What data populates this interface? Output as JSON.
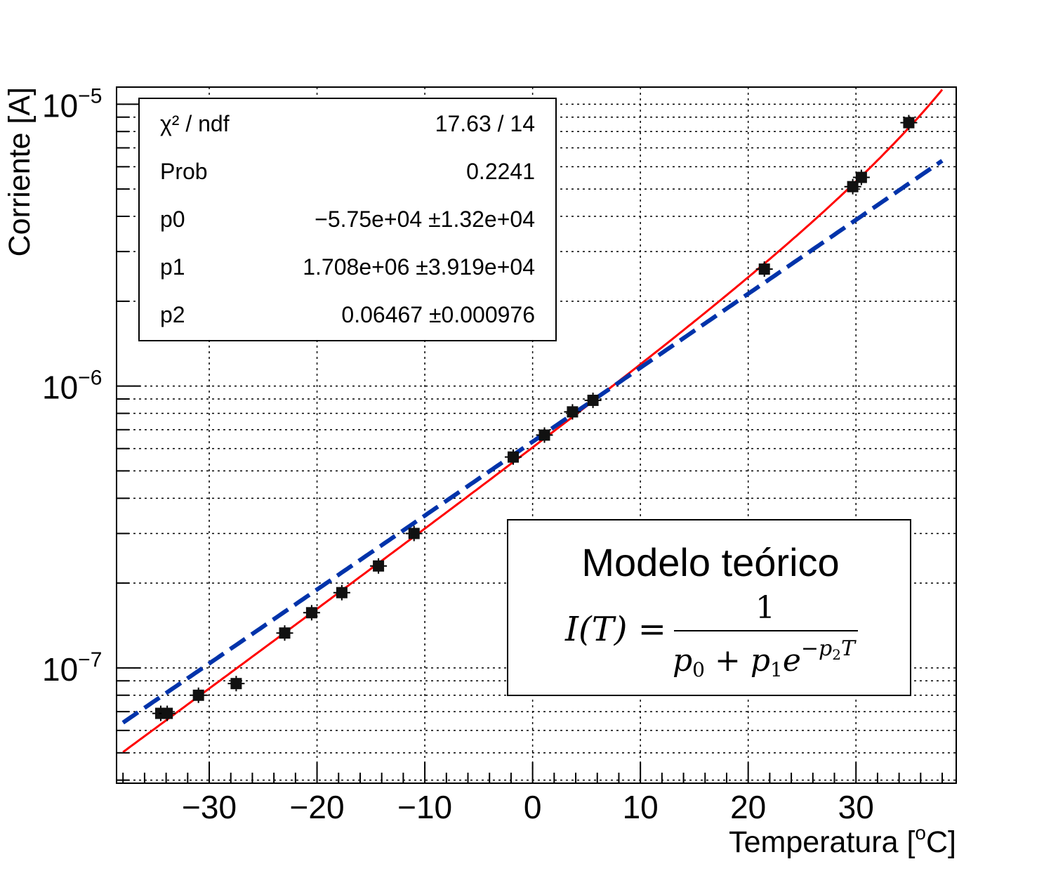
{
  "chart_data": {
    "type": "scatter",
    "xlabel": "Temperatura [",
    "xlabel_sup": "o",
    "xlabel_tail": "C]",
    "ylabel": "Corriente [A]",
    "x_ticks": [
      "−30",
      "−20",
      "−10",
      "0",
      "10",
      "20",
      "30"
    ],
    "x_tick_values": [
      -30,
      -20,
      -10,
      0,
      10,
      20,
      30
    ],
    "xlim": [
      -38.6,
      39.3
    ],
    "y_scale": "log",
    "ylim": [
      3.9e-08,
      1.15e-05
    ],
    "y_ticks": [
      {
        "value": 1e-05,
        "base": "10",
        "exp": "−5"
      },
      {
        "value": 1e-06,
        "base": "10",
        "exp": "−6"
      },
      {
        "value": 1e-07,
        "base": "10",
        "exp": "−7"
      }
    ],
    "grid": true,
    "points": [
      {
        "x": -34.5,
        "y": 6.9e-08
      },
      {
        "x": -33.9,
        "y": 6.9e-08
      },
      {
        "x": -31.0,
        "y": 8e-08
      },
      {
        "x": -27.5,
        "y": 8.8e-08
      },
      {
        "x": -23.0,
        "y": 1.33e-07
      },
      {
        "x": -20.5,
        "y": 1.57e-07
      },
      {
        "x": -17.7,
        "y": 1.85e-07
      },
      {
        "x": -14.3,
        "y": 2.3e-07
      },
      {
        "x": -11.0,
        "y": 3e-07
      },
      {
        "x": -1.8,
        "y": 5.6e-07
      },
      {
        "x": 1.1,
        "y": 6.7e-07
      },
      {
        "x": 3.7,
        "y": 8.1e-07
      },
      {
        "x": 5.6,
        "y": 8.9e-07
      },
      {
        "x": 21.5,
        "y": 2.6e-06
      },
      {
        "x": 29.7,
        "y": 5.1e-06
      },
      {
        "x": 30.5,
        "y": 5.5e-06
      },
      {
        "x": 34.9,
        "y": 8.6e-06
      }
    ],
    "fit_curves": [
      {
        "style": "solid",
        "color": "#ff0000",
        "x_range": [
          -38.0,
          38.0
        ],
        "p0": -57500,
        "p1": 1708000,
        "p2": 0.06467
      },
      {
        "style": "dashed",
        "color": "#0033aa",
        "x_range": [
          -38.0,
          38.0
        ],
        "p0": 0,
        "p1": 1575000,
        "p2": 0.0604
      }
    ],
    "stats_box": [
      {
        "label": "χ² / ndf",
        "value": "17.63 / 14"
      },
      {
        "label": "Prob",
        "value": "0.2241"
      },
      {
        "label": "p0",
        "value": "−5.75e+04 ±1.32e+04"
      },
      {
        "label": "p1",
        "value": "1.708e+06 ±3.919e+04"
      },
      {
        "label": "p2",
        "value": "0.06467 ±0.000976"
      }
    ],
    "model_box": {
      "title": "Modelo teórico",
      "lhs": "I(T) =",
      "numerator": "1",
      "denominator": "p₀ + p₁e⁻ᵖ²ᵀ"
    }
  }
}
